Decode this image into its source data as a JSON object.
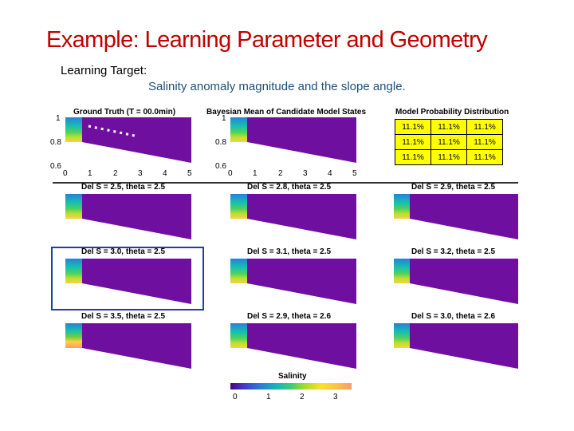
{
  "slide": {
    "title": "Example: Learning Parameter and Geometry",
    "learning_target_label": "Learning Target:",
    "learning_target_desc": "Salinity anomaly magnitude and the slope angle."
  },
  "colors": {
    "title": "#c00000",
    "field": "#6f0f9f",
    "highlight_box": "#1f3fa8",
    "prob_table_bg": "#ffff00"
  },
  "top_panels": [
    {
      "title": "Ground Truth (T = 00.0min)",
      "y_ticks": [
        "1",
        "0.8",
        "0.6"
      ],
      "x_ticks": [
        "0",
        "1",
        "2",
        "3",
        "4",
        "5"
      ]
    },
    {
      "title": "Bayesian Mean of Candidate Model States",
      "y_ticks": [
        "1",
        "0.8",
        "0.6"
      ],
      "x_ticks": [
        "0",
        "1",
        "2",
        "3",
        "4",
        "5"
      ]
    }
  ],
  "probability": {
    "title": "Model Probability Distribution",
    "cells": [
      [
        "11.1%",
        "11.1%",
        "11.1%"
      ],
      [
        "11.1%",
        "11.1%",
        "11.1%"
      ],
      [
        "11.1%",
        "11.1%",
        "11.1%"
      ]
    ]
  },
  "candidates": [
    {
      "title": "Del S = 2.5, theta = 2.5"
    },
    {
      "title": "Del S = 2.8, theta = 2.5"
    },
    {
      "title": "Del S = 2.9, theta = 2.5"
    },
    {
      "title": "Del S = 3.0, theta = 2.5"
    },
    {
      "title": "Del S = 3.1, theta = 2.5"
    },
    {
      "title": "Del S = 3.2, theta = 2.5"
    },
    {
      "title": "Del S = 3.5, theta = 2.5"
    },
    {
      "title": "Del S = 2.9, theta = 2.6"
    },
    {
      "title": "Del S = 3.0, theta = 2.6"
    }
  ],
  "colorbar": {
    "title": "Salinity",
    "ticks": [
      "0",
      "1",
      "2",
      "3"
    ]
  }
}
